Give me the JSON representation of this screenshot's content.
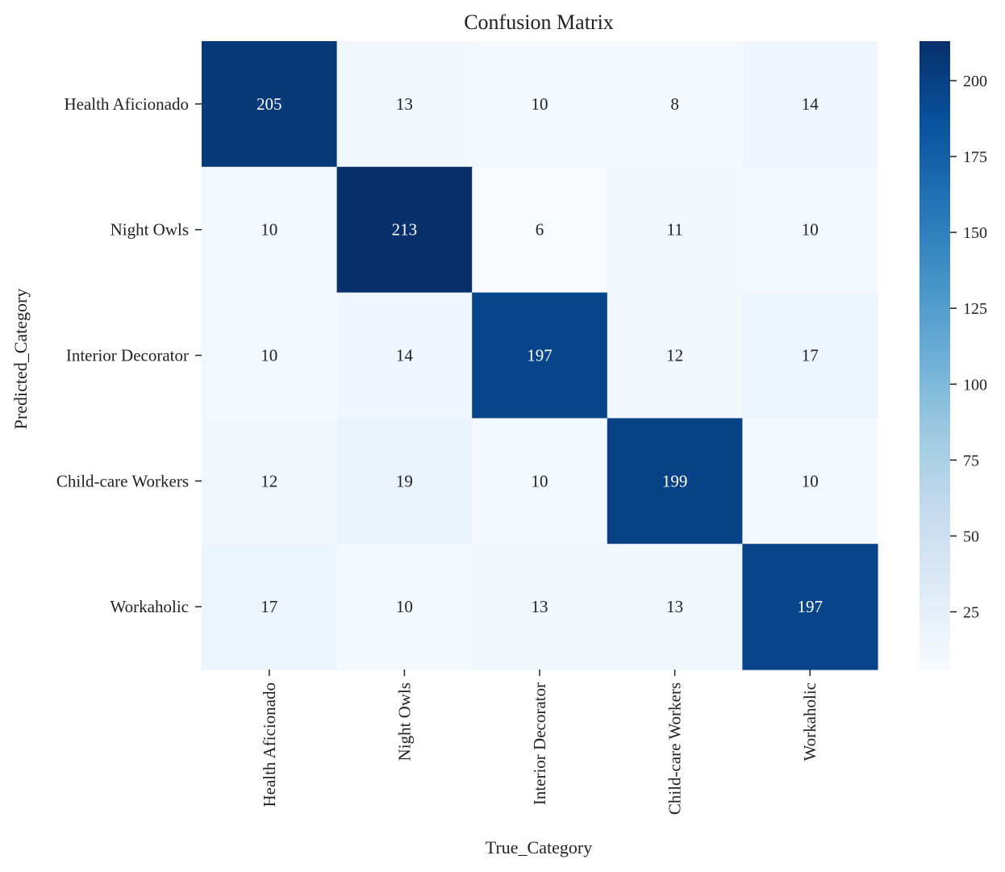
{
  "chart_data": {
    "type": "heatmap",
    "title": "Confusion Matrix",
    "xlabel": "True_Category",
    "ylabel": "Predicted_Category",
    "x_categories": [
      "Health Aficionado",
      "Night Owls",
      "Interior Decorator",
      "Child-care Workers",
      "Workaholic"
    ],
    "y_categories": [
      "Health Aficionado",
      "Night Owls",
      "Interior Decorator",
      "Child-care Workers",
      "Workaholic"
    ],
    "values": [
      [
        205,
        13,
        10,
        8,
        14
      ],
      [
        10,
        213,
        6,
        11,
        10
      ],
      [
        10,
        14,
        197,
        12,
        17
      ],
      [
        12,
        19,
        10,
        199,
        10
      ],
      [
        17,
        10,
        13,
        13,
        197
      ]
    ],
    "colorbar": {
      "range": [
        6,
        213
      ],
      "ticks": [
        25,
        50,
        75,
        100,
        125,
        150,
        175,
        200
      ],
      "colormap": "Blues",
      "stops": [
        "#f7fbff",
        "#deebf7",
        "#c6dbef",
        "#9ecae1",
        "#6baed6",
        "#4292c6",
        "#2171b5",
        "#08519c",
        "#08306b"
      ]
    },
    "grid": false,
    "legend": "colorbar-right"
  }
}
